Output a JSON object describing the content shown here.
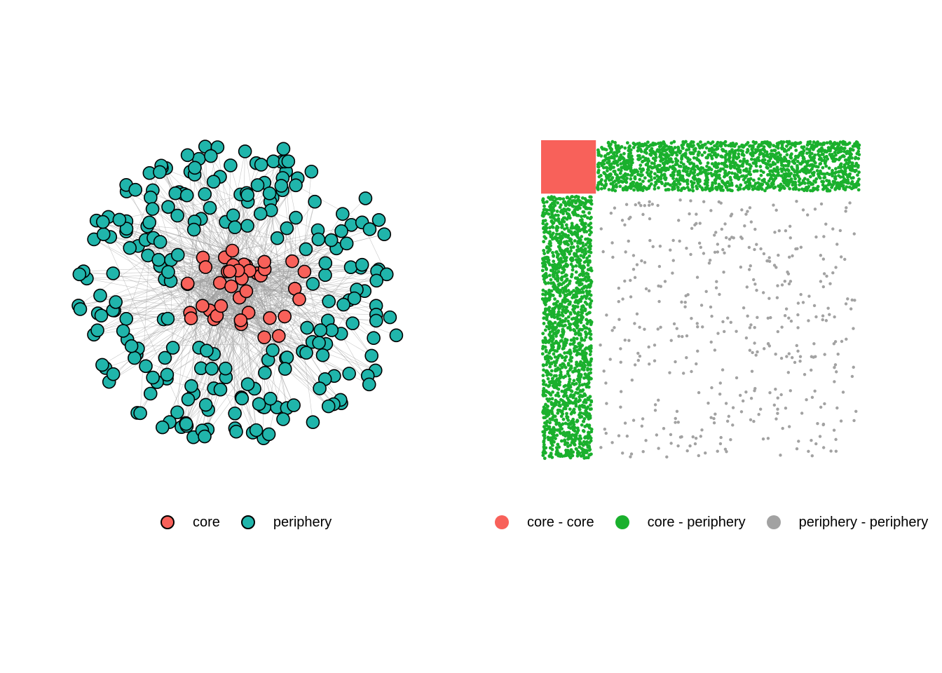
{
  "colors": {
    "core": "#f8615a",
    "periphery": "#20b5ab",
    "edge": "#9a9a9a",
    "core_core": "#f8615a",
    "core_periphery": "#1ab02d",
    "periphery_periphery": "#a2a2a2",
    "node_stroke": "#000000"
  },
  "network_legend": {
    "items": [
      {
        "label": "core",
        "color": "#f8615a"
      },
      {
        "label": "periphery",
        "color": "#20b5ab"
      }
    ]
  },
  "matrix_legend": {
    "items": [
      {
        "label": "core - core",
        "color": "#f8615a"
      },
      {
        "label": "core - periphery",
        "color": "#1ab02d"
      },
      {
        "label": "periphery - periphery",
        "color": "#a2a2a2"
      }
    ]
  },
  "network": {
    "core_nodes": 40,
    "periphery_nodes": 240,
    "total_nodes": 280
  },
  "adjacency_matrix": {
    "core_fraction": 0.17
  }
}
